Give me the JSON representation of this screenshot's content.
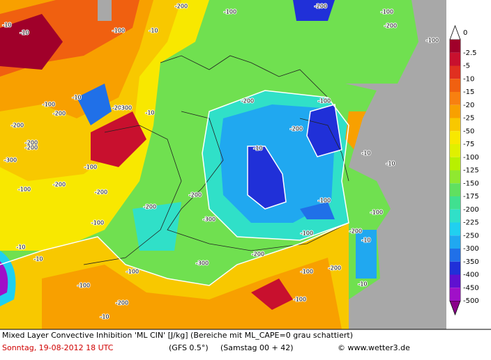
{
  "map": {
    "colorbar": {
      "labels": [
        0,
        -2.5,
        -5,
        -10,
        -15,
        -20,
        -25,
        -50,
        -75,
        -100,
        -125,
        -150,
        -175,
        -200,
        -225,
        -250,
        -300,
        -350,
        -400,
        -450,
        -500
      ],
      "colors": [
        "#a0002a",
        "#c8102e",
        "#e03020",
        "#f06010",
        "#f88010",
        "#f8a000",
        "#f8c800",
        "#f8e800",
        "#e0f000",
        "#b8f000",
        "#90e830",
        "#60e060",
        "#40e090",
        "#30e0c8",
        "#20d0f0",
        "#20a8f0",
        "#2070e8",
        "#2030d8",
        "#6010d0",
        "#a010c8"
      ]
    },
    "contour_labels": [
      -10,
      -10,
      -100,
      -10,
      -200,
      -100,
      -200,
      -100,
      -100,
      -200,
      -10,
      -200,
      -200,
      -10,
      -100,
      -200,
      -300,
      -200,
      -300,
      -200,
      -100,
      -200,
      -100,
      -200,
      -300,
      -200,
      -10,
      -100,
      -200,
      -100,
      -100,
      -200,
      -10,
      -100,
      -10,
      -10,
      -100,
      -200,
      -200,
      -300,
      -10,
      -10,
      -100,
      -200,
      -10,
      -100,
      -100,
      -200,
      -100,
      -200,
      -10
    ],
    "footer": {
      "title": "Mixed Layer Convective Inhibition 'ML CIN' [J/kg] (Bereiche mit ML_CAPE=0 grau schattiert)",
      "date": "Sonntag, 19-08-2012  18 UTC",
      "model": "(GFS 0.5°)",
      "run": "(Samstag 00 + 42)",
      "credit": "© www.wetter3.de"
    }
  }
}
